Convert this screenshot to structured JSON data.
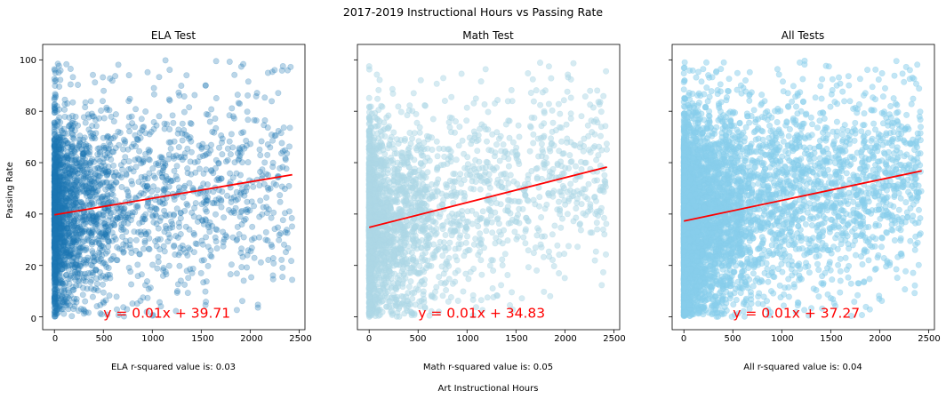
{
  "figure": {
    "suptitle": "2017-2019 Instructional Hours vs Passing Rate",
    "shared_xlabel": "Art Instructional Hours",
    "shared_ylabel": "Passing Rate"
  },
  "chart_data": [
    {
      "type": "scatter",
      "title": "ELA Test",
      "xlabel": "ELA r-squared value is: 0.03",
      "ylabel": "Passing Rate",
      "xlim": [
        -120,
        2560
      ],
      "ylim": [
        -5,
        106
      ],
      "xticks": [
        0,
        500,
        1000,
        1500,
        2000,
        2500
      ],
      "yticks": [
        0,
        20,
        40,
        60,
        80,
        100
      ],
      "point_color": "#1f77b4",
      "point_alpha": 0.3,
      "n_points_approx": 2600,
      "x_range": [
        0,
        2430
      ],
      "y_range": [
        0,
        100
      ],
      "regression": {
        "x": [
          0,
          2430
        ],
        "y": [
          39.71,
          55.3
        ],
        "color": "#ff0000",
        "equation": "y = 0.01x + 39.71"
      },
      "grid": false
    },
    {
      "type": "scatter",
      "title": "Math Test",
      "xlabel": "Math r-squared value is: 0.05",
      "ylabel": "",
      "xlim": [
        -120,
        2560
      ],
      "ylim": [
        -5,
        106
      ],
      "xticks": [
        0,
        500,
        1000,
        1500,
        2000,
        2500
      ],
      "yticks": [
        0,
        20,
        40,
        60,
        80,
        100
      ],
      "point_color": "#add8e6",
      "point_alpha": 0.5,
      "n_points_approx": 2600,
      "x_range": [
        0,
        2430
      ],
      "y_range": [
        0,
        100
      ],
      "regression": {
        "x": [
          0,
          2430
        ],
        "y": [
          34.83,
          58.3
        ],
        "color": "#ff0000",
        "equation": "y = 0.01x + 34.83"
      },
      "grid": false
    },
    {
      "type": "scatter",
      "title": "All Tests",
      "xlabel": "All r-squared value is: 0.04",
      "ylabel": "",
      "xlim": [
        -120,
        2560
      ],
      "ylim": [
        -5,
        106
      ],
      "xticks": [
        0,
        500,
        1000,
        1500,
        2000,
        2500
      ],
      "yticks": [
        0,
        20,
        40,
        60,
        80,
        100
      ],
      "point_color": "#87ceeb",
      "point_alpha": 0.5,
      "n_points_approx": 5200,
      "x_range": [
        0,
        2430
      ],
      "y_range": [
        0,
        100
      ],
      "regression": {
        "x": [
          0,
          2430
        ],
        "y": [
          37.27,
          56.8
        ],
        "color": "#ff0000",
        "equation": "y = 0.01x + 37.27"
      },
      "grid": false
    }
  ]
}
